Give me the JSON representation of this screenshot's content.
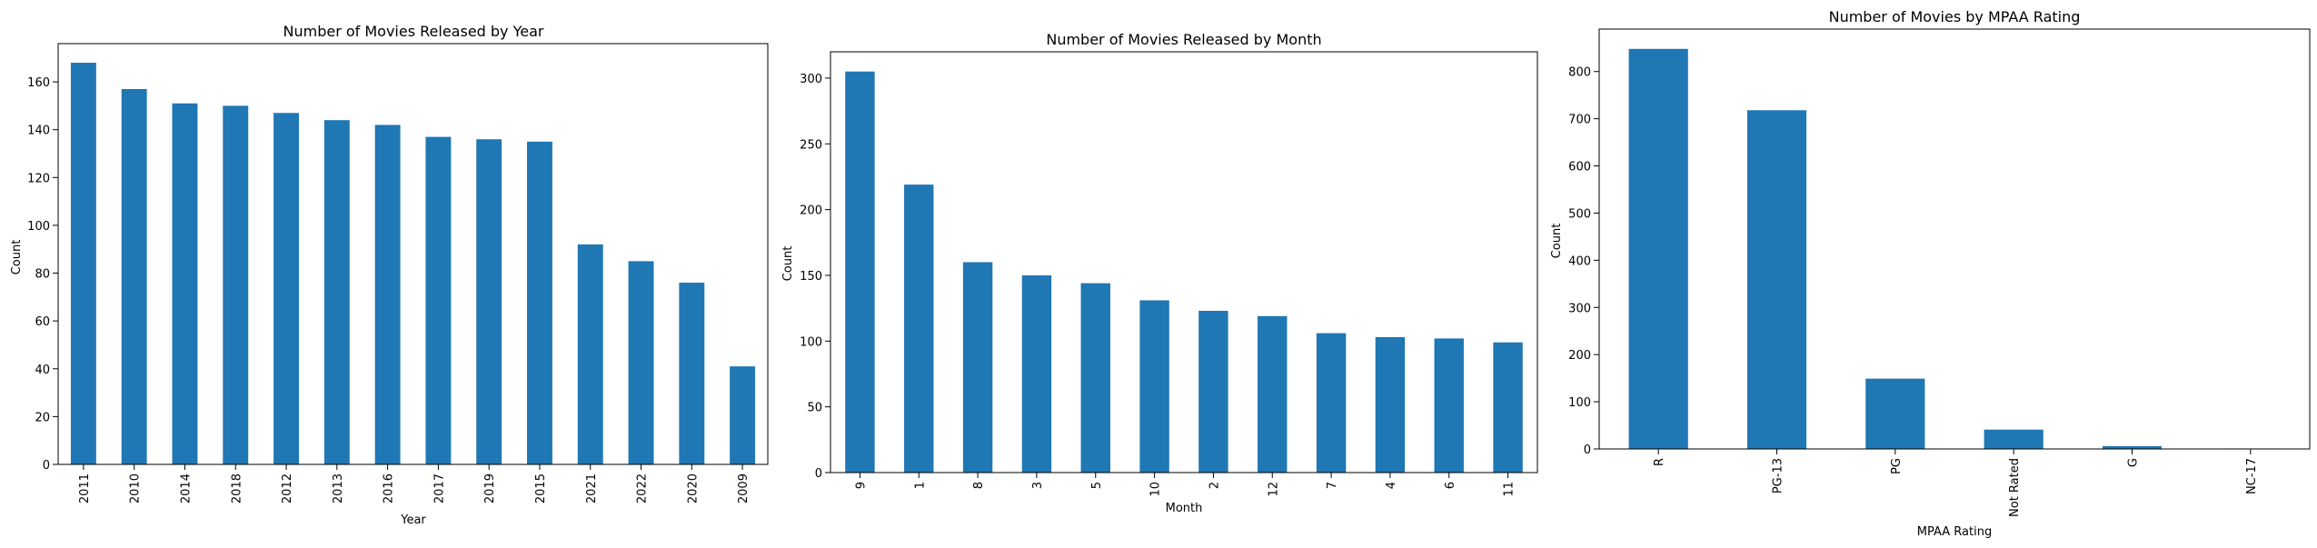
{
  "colors": {
    "bar": "#1f77b4",
    "axis": "#000000",
    "background": "#ffffff"
  },
  "chart_data": [
    {
      "type": "bar",
      "title": "Number of Movies Released by Year",
      "xlabel": "Year",
      "ylabel": "Count",
      "categories": [
        "2011",
        "2010",
        "2014",
        "2018",
        "2012",
        "2013",
        "2016",
        "2017",
        "2019",
        "2015",
        "2021",
        "2022",
        "2020",
        "2009"
      ],
      "values": [
        168,
        157,
        151,
        150,
        147,
        144,
        142,
        137,
        136,
        135,
        92,
        85,
        76,
        41
      ],
      "ylim": [
        0,
        176
      ],
      "yticks": [
        0,
        20,
        40,
        60,
        80,
        100,
        120,
        140,
        160
      ],
      "grid": false,
      "legend": "none"
    },
    {
      "type": "bar",
      "title": "Number of Movies Released by Month",
      "xlabel": "Month",
      "ylabel": "Count",
      "categories": [
        "9",
        "1",
        "8",
        "3",
        "5",
        "10",
        "2",
        "12",
        "7",
        "4",
        "6",
        "11"
      ],
      "values": [
        305,
        219,
        160,
        150,
        144,
        131,
        123,
        119,
        106,
        103,
        102,
        99
      ],
      "ylim": [
        0,
        320
      ],
      "yticks": [
        0,
        50,
        100,
        150,
        200,
        250,
        300
      ],
      "grid": false,
      "legend": "none"
    },
    {
      "type": "bar",
      "title": "Number of Movies by MPAA Rating",
      "xlabel": "MPAA Rating",
      "ylabel": "Count",
      "categories": [
        "R",
        "PG-13",
        "PG",
        "Not Rated",
        "G",
        "NC-17"
      ],
      "values": [
        848,
        718,
        149,
        41,
        6,
        1
      ],
      "ylim": [
        0,
        890
      ],
      "yticks": [
        0,
        100,
        200,
        300,
        400,
        500,
        600,
        700,
        800
      ],
      "grid": false,
      "legend": "none"
    }
  ]
}
